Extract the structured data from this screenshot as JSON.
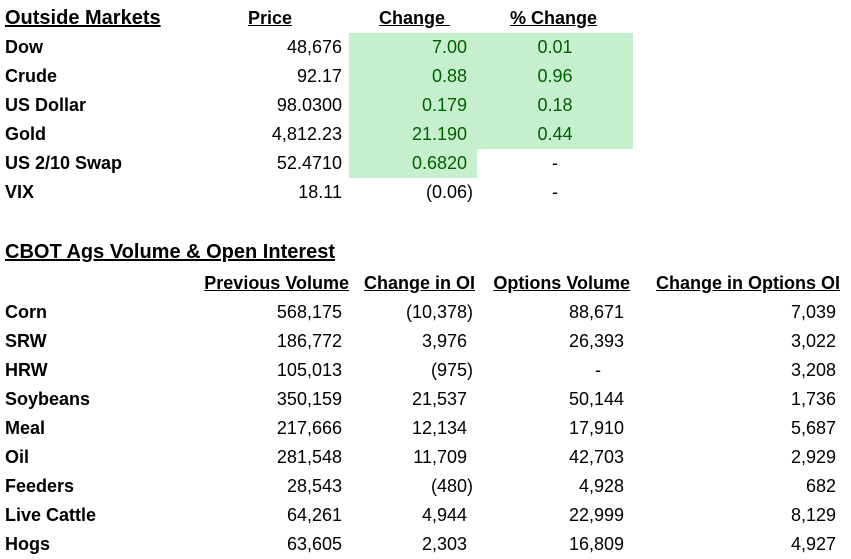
{
  "outside_markets": {
    "title": "Outside Markets",
    "headers": {
      "price": "Price",
      "change": "Change ",
      "pct_change": "% Change"
    },
    "rows": [
      {
        "name": "Dow",
        "price": "48,676",
        "change": "7.00",
        "pct_change": "0.01"
      },
      {
        "name": "Crude",
        "price": "92.17",
        "change": "0.88",
        "pct_change": "0.96"
      },
      {
        "name": "US Dollar",
        "price": "98.0300",
        "change": "0.179",
        "pct_change": "0.18"
      },
      {
        "name": "Gold",
        "price": "4,812.23",
        "change": "21.190",
        "pct_change": "0.44"
      },
      {
        "name": "US 2/10 Swap",
        "price": "52.4710",
        "change": "0.6820",
        "pct_change": "-"
      },
      {
        "name": "VIX",
        "price": "18.11",
        "change": "(0.06)",
        "pct_change": "-"
      }
    ],
    "positive_fill": "#c6efce",
    "positive_text": "#006100"
  },
  "cbot": {
    "title": "CBOT Ags Volume & Open Interest",
    "headers": {
      "prev_volume": "Previous Volume",
      "change_oi": "Change in OI",
      "options_volume": "Options Volume",
      "change_options_oi": "Change in Options OI"
    },
    "rows": [
      {
        "name": "Corn",
        "prev_volume": "568,175",
        "change_oi": "(10,378)",
        "options_volume": "88,671",
        "change_options_oi": "7,039"
      },
      {
        "name": "SRW",
        "prev_volume": "186,772",
        "change_oi": "3,976",
        "options_volume": "26,393",
        "change_options_oi": "3,022"
      },
      {
        "name": "HRW",
        "prev_volume": "105,013",
        "change_oi": "(975)",
        "options_volume": "-",
        "change_options_oi": "3,208"
      },
      {
        "name": "Soybeans",
        "prev_volume": "350,159",
        "change_oi": "21,537",
        "options_volume": "50,144",
        "change_options_oi": "1,736"
      },
      {
        "name": "Meal",
        "prev_volume": "217,666",
        "change_oi": "12,134",
        "options_volume": "17,910",
        "change_options_oi": "5,687"
      },
      {
        "name": "Oil",
        "prev_volume": "281,548",
        "change_oi": "11,709",
        "options_volume": "42,703",
        "change_options_oi": "2,929"
      },
      {
        "name": "Feeders",
        "prev_volume": "28,543",
        "change_oi": "(480)",
        "options_volume": "4,928",
        "change_options_oi": "682"
      },
      {
        "name": "Live Cattle",
        "prev_volume": "64,261",
        "change_oi": "4,944",
        "options_volume": "22,999",
        "change_options_oi": "8,129"
      },
      {
        "name": "Hogs",
        "prev_volume": "63,605",
        "change_oi": "2,303",
        "options_volume": "16,809",
        "change_options_oi": "4,927"
      }
    ]
  }
}
